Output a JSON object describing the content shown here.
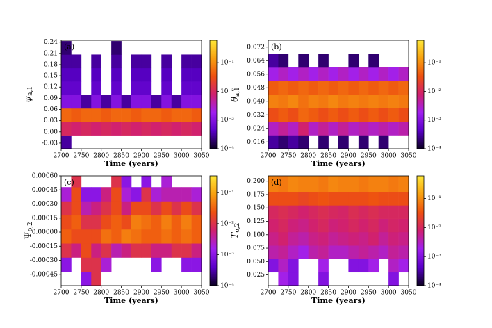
{
  "chart_data": [
    {
      "type": "heatmap",
      "panel_label": "(a)",
      "xlabel": "Time (years)",
      "ylabel": {
        "symbol": "ψ",
        "subscript": "a,1"
      },
      "italic": true,
      "xlim": [
        2700,
        3050
      ],
      "xticks": [
        2700,
        2750,
        2800,
        2850,
        2900,
        2950,
        3000,
        3050
      ],
      "ylim": [
        -0.045,
        0.245
      ],
      "yticks": [
        -0.03,
        {
          "value": 0,
          "label": "0.00"
        },
        0.03,
        0.06,
        0.09,
        0.12,
        0.15,
        0.18,
        0.21,
        0.24
      ],
      "xbins": [
        2700,
        2725,
        2750,
        2775,
        2800,
        2825,
        2850,
        2875,
        2900,
        2925,
        2950,
        2975,
        3000,
        3025,
        3050
      ],
      "ybins": [
        -0.045,
        -0.009,
        0.027,
        0.063,
        0.099,
        0.135,
        0.171,
        0.207,
        0.243
      ],
      "z": [
        [
          0.0003,
          0,
          0,
          0,
          0,
          0,
          0,
          0,
          0,
          0,
          0,
          0,
          0,
          0
        ],
        [
          0.01,
          0.008,
          0.01,
          0.008,
          0.01,
          0.008,
          0.01,
          0.008,
          0.01,
          0.008,
          0.01,
          0.008,
          0.01,
          0.008
        ],
        [
          0.05,
          0.04,
          0.05,
          0.05,
          0.04,
          0.05,
          0.05,
          0.04,
          0.05,
          0.05,
          0.04,
          0.05,
          0.05,
          0.04
        ],
        [
          0.001,
          0.001,
          0.0003,
          0.001,
          0.0003,
          0.001,
          0.0003,
          0.001,
          0.001,
          0.0003,
          0.001,
          0.0003,
          0.001,
          0.001
        ],
        [
          0.0005,
          0.0005,
          0,
          0.0005,
          0,
          0.0005,
          0,
          0.0005,
          0.0005,
          0,
          0.0005,
          0,
          0.0005,
          0.0005
        ],
        [
          0.0004,
          0.0004,
          0,
          0.0004,
          0,
          0.0004,
          0,
          0.0004,
          0.0004,
          0,
          0.0004,
          0,
          0.0004,
          0.0004
        ],
        [
          0.0003,
          0.0003,
          0,
          0.0003,
          0,
          0.0003,
          0,
          0.0003,
          0.0003,
          0,
          0.0003,
          0,
          0.0003,
          0.0003
        ],
        [
          0.0002,
          0,
          0,
          0,
          0,
          0.0002,
          0,
          0,
          0,
          0,
          0,
          0,
          0,
          0
        ]
      ],
      "clim": [
        0.0001,
        0.6
      ],
      "log_color": true,
      "cticks": [
        {
          "value": 0.0001,
          "label": "10⁻⁴"
        },
        {
          "value": 0.001,
          "label": "10⁻³"
        },
        {
          "value": 0.01,
          "label": "10⁻²"
        },
        {
          "value": 0.1,
          "label": "10⁻¹"
        }
      ],
      "colormap": [
        "#0a0020",
        "#5a00c8",
        "#a020f0",
        "#d02070",
        "#ee5010",
        "#f8a010",
        "#ffe838"
      ]
    },
    {
      "type": "heatmap",
      "panel_label": "(b)",
      "xlabel": "Time (years)",
      "ylabel": {
        "symbol": "θ",
        "subscript": "a,1"
      },
      "italic": true,
      "xlim": [
        2700,
        3050
      ],
      "xticks": [
        2700,
        2750,
        2800,
        2850,
        2900,
        2950,
        3000,
        3050
      ],
      "ylim": [
        0.012,
        0.076
      ],
      "yticks": [
        0.016,
        0.024,
        0.032,
        {
          "value": 0.04,
          "label": "0.040"
        },
        0.048,
        0.056,
        0.064,
        0.072
      ],
      "xbins": [
        2700,
        2725,
        2750,
        2775,
        2800,
        2825,
        2850,
        2875,
        2900,
        2925,
        2950,
        2975,
        3000,
        3025,
        3050
      ],
      "ybins": [
        0.012,
        0.02,
        0.028,
        0.036,
        0.044,
        0.052,
        0.06,
        0.068,
        0.076
      ],
      "z": [
        [
          0.0003,
          0.0002,
          0.0003,
          0.0002,
          0,
          0.0002,
          0,
          0.0002,
          0,
          0.0002,
          0,
          0.0002,
          0,
          0
        ],
        [
          0.003,
          0.005,
          0.003,
          0.008,
          0.003,
          0.005,
          0.003,
          0.005,
          0.003,
          0.004,
          0.003,
          0.004,
          0.003,
          0.004
        ],
        [
          0.03,
          0.04,
          0.03,
          0.05,
          0.04,
          0.03,
          0.04,
          0.03,
          0.04,
          0.03,
          0.04,
          0.03,
          0.04,
          0.03
        ],
        [
          0.08,
          0.07,
          0.09,
          0.06,
          0.08,
          0.07,
          0.09,
          0.07,
          0.08,
          0.07,
          0.08,
          0.07,
          0.08,
          0.07
        ],
        [
          0.04,
          0.05,
          0.04,
          0.05,
          0.04,
          0.05,
          0.04,
          0.05,
          0.04,
          0.05,
          0.04,
          0.05,
          0.04,
          0.05
        ],
        [
          0.002,
          0.003,
          0.002,
          0.003,
          0.002,
          0.003,
          0.002,
          0.003,
          0.002,
          0.003,
          0.002,
          0.003,
          0.002,
          0.003
        ],
        [
          0.0003,
          0.0002,
          0,
          0.0002,
          0,
          0.0002,
          0,
          0,
          0.0002,
          0,
          0.0002,
          0,
          0,
          0
        ],
        [
          0,
          0,
          0,
          0,
          0,
          0,
          0,
          0,
          0,
          0,
          0,
          0,
          0,
          0
        ]
      ],
      "clim": [
        0.0001,
        0.6
      ],
      "log_color": true,
      "cticks": [
        {
          "value": 0.0001,
          "label": "10⁻⁴"
        },
        {
          "value": 0.001,
          "label": "10⁻³"
        },
        {
          "value": 0.01,
          "label": "10⁻²"
        },
        {
          "value": 0.1,
          "label": "10⁻¹"
        }
      ],
      "colormap": [
        "#0a0020",
        "#5a00c8",
        "#a020f0",
        "#d02070",
        "#ee5010",
        "#f8a010",
        "#ffe838"
      ]
    },
    {
      "type": "heatmap",
      "panel_label": "(c)",
      "xlabel": "Time (years)",
      "ylabel": {
        "symbol": "Ψ",
        "subscript": "o,2"
      },
      "italic": false,
      "xlim": [
        2700,
        3050
      ],
      "xticks": [
        2700,
        2750,
        2800,
        2850,
        2900,
        2950,
        3000,
        3050
      ],
      "ylim": [
        -0.00057,
        0.0006
      ],
      "yticks": [
        -0.00045,
        {
          "value": -0.0003,
          "label": "-0.00030"
        },
        -0.00015,
        {
          "value": 0,
          "label": "0.00000"
        },
        0.00015,
        {
          "value": 0.0003,
          "label": "0.00030"
        },
        0.00045,
        {
          "value": 0.0006,
          "label": "0.00060"
        }
      ],
      "xbins": [
        2700,
        2725,
        2750,
        2775,
        2800,
        2825,
        2850,
        2875,
        2900,
        2925,
        2950,
        2975,
        3000,
        3025,
        3050
      ],
      "ybins": [
        -0.00057,
        -0.00042,
        -0.00027,
        -0.00012,
        3e-05,
        0.00018,
        0.00033,
        0.00048,
        0.0006
      ],
      "z": [
        [
          0,
          0,
          0.001,
          0.01,
          0,
          0,
          0,
          0,
          0,
          0,
          0,
          0,
          0,
          0
        ],
        [
          0.001,
          0,
          0.01,
          0.01,
          0.002,
          0,
          0,
          0,
          0,
          0.001,
          0,
          0,
          0.001,
          0.001
        ],
        [
          0.01,
          0.005,
          0.02,
          0.005,
          0.01,
          0.003,
          0.005,
          0.01,
          0.01,
          0.005,
          0.005,
          0.01,
          0.01,
          0.005
        ],
        [
          0.03,
          0.02,
          0.02,
          0.02,
          0.04,
          0.03,
          0.05,
          0.04,
          0.03,
          0.03,
          0.04,
          0.03,
          0.04,
          0.03
        ],
        [
          0.02,
          0.03,
          0.01,
          0.01,
          0.02,
          0.03,
          0.02,
          0.05,
          0.04,
          0.03,
          0.05,
          0.03,
          0.05,
          0.03
        ],
        [
          0.01,
          0.02,
          0.003,
          0.005,
          0.01,
          0.02,
          0.005,
          0.02,
          0.02,
          0.01,
          0.02,
          0.01,
          0.02,
          0.01
        ],
        [
          0.002,
          0.02,
          0.001,
          0.001,
          0.005,
          0.02,
          0.002,
          0.001,
          0.01,
          0.002,
          0.003,
          0.003,
          0.003,
          0.002
        ],
        [
          0,
          0.01,
          0,
          0,
          0,
          0.01,
          0.001,
          0,
          0.001,
          0,
          0.002,
          0,
          0,
          0
        ]
      ],
      "clim": [
        0.0001,
        0.35
      ],
      "log_color": true,
      "cticks": [
        {
          "value": 0.0001,
          "label": "10⁻⁴"
        },
        {
          "value": 0.001,
          "label": "10⁻³"
        },
        {
          "value": 0.01,
          "label": "10⁻²"
        },
        {
          "value": 0.1,
          "label": "10⁻¹"
        }
      ],
      "colormap": [
        "#0a0020",
        "#5a00c8",
        "#a020f0",
        "#d02070",
        "#ee5010",
        "#f8a010",
        "#ffe838"
      ]
    },
    {
      "type": "heatmap",
      "panel_label": "(d)",
      "xlabel": "Time (years)",
      "ylabel": {
        "symbol": "T",
        "subscript": "o,2"
      },
      "italic": true,
      "xlim": [
        2700,
        3050
      ],
      "xticks": [
        2700,
        2750,
        2800,
        2850,
        2900,
        2950,
        3000,
        3050
      ],
      "ylim": [
        0.005,
        0.21
      ],
      "yticks": [
        0.025,
        {
          "value": 0.05,
          "label": "0.050"
        },
        0.075,
        {
          "value": 0.1,
          "label": "0.100"
        },
        0.125,
        {
          "value": 0.15,
          "label": "0.150"
        },
        0.175,
        {
          "value": 0.2,
          "label": "0.200"
        }
      ],
      "xbins": [
        2700,
        2725,
        2750,
        2775,
        2800,
        2825,
        2850,
        2875,
        2900,
        2925,
        2950,
        2975,
        3000,
        3025,
        3050
      ],
      "ybins": [
        0.005,
        0.03,
        0.055,
        0.08,
        0.105,
        0.13,
        0.155,
        0.18,
        0.21
      ],
      "z": [
        [
          0,
          0.002,
          0.001,
          0,
          0,
          0.001,
          0,
          0,
          0,
          0,
          0,
          0,
          0.001,
          0
        ],
        [
          0.001,
          0.003,
          0.001,
          0,
          0,
          0.002,
          0,
          0,
          0.001,
          0.001,
          0.002,
          0,
          0.003,
          0.002
        ],
        [
          0.004,
          0.005,
          0.003,
          0.002,
          0.004,
          0.005,
          0.003,
          0.003,
          0.004,
          0.005,
          0.004,
          0.003,
          0.005,
          0.004
        ],
        [
          0.006,
          0.008,
          0.005,
          0.004,
          0.006,
          0.007,
          0.005,
          0.006,
          0.007,
          0.006,
          0.008,
          0.005,
          0.007,
          0.006
        ],
        [
          0.008,
          0.01,
          0.007,
          0.006,
          0.008,
          0.01,
          0.007,
          0.008,
          0.01,
          0.008,
          0.01,
          0.007,
          0.009,
          0.008
        ],
        [
          0.01,
          0.012,
          0.01,
          0.008,
          0.01,
          0.012,
          0.01,
          0.009,
          0.012,
          0.01,
          0.012,
          0.01,
          0.01,
          0.01
        ],
        [
          0.03,
          0.03,
          0.03,
          0.025,
          0.03,
          0.035,
          0.03,
          0.03,
          0.03,
          0.03,
          0.035,
          0.03,
          0.03,
          0.03
        ],
        [
          0.08,
          0.07,
          0.09,
          0.08,
          0.08,
          0.07,
          0.09,
          0.08,
          0.08,
          0.07,
          0.08,
          0.08,
          0.07,
          0.08
        ]
      ],
      "clim": [
        0.0001,
        0.6
      ],
      "log_color": true,
      "cticks": [
        {
          "value": 0.0001,
          "label": "10⁻⁴"
        },
        {
          "value": 0.001,
          "label": "10⁻³"
        },
        {
          "value": 0.01,
          "label": "10⁻²"
        },
        {
          "value": 0.1,
          "label": "10⁻¹"
        }
      ],
      "colormap": [
        "#0a0020",
        "#5a00c8",
        "#a020f0",
        "#d02070",
        "#ee5010",
        "#f8a010",
        "#ffe838"
      ]
    }
  ]
}
